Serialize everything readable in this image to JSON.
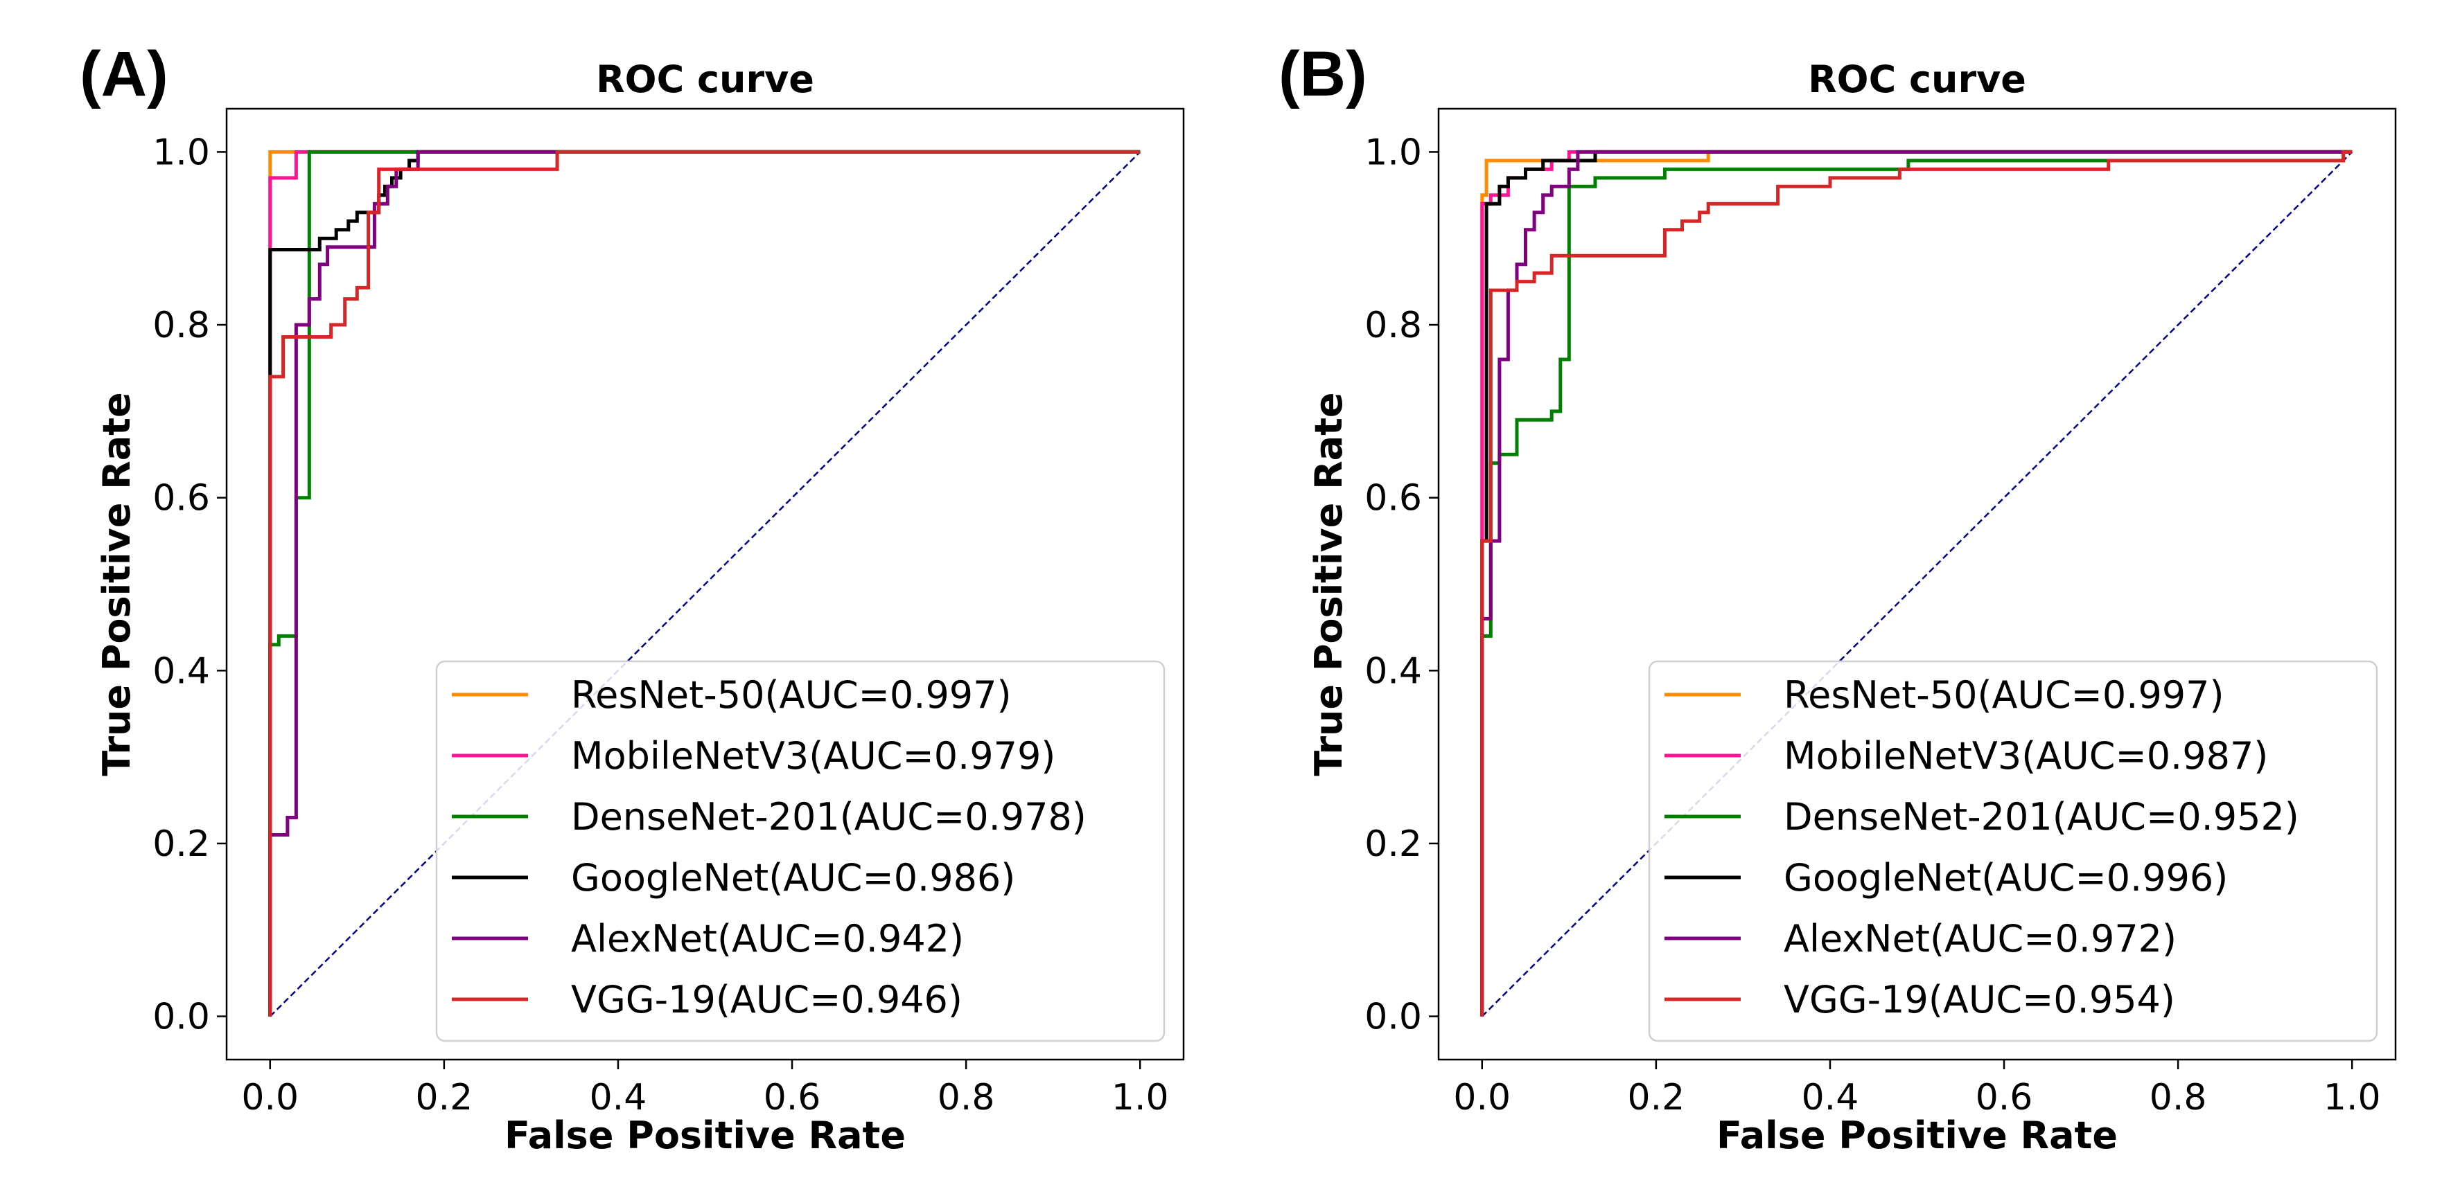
{
  "chart_data": [
    {
      "type": "line",
      "panel_label": "(A)",
      "title": "ROC curve",
      "xlabel": "False Positive Rate",
      "ylabel": "True Positive Rate",
      "xlim": [
        0,
        1
      ],
      "ylim": [
        0,
        1
      ],
      "xticks": [
        "0.0",
        "0.2",
        "0.4",
        "0.6",
        "0.8",
        "1.0"
      ],
      "yticks": [
        "0.0",
        "0.2",
        "0.4",
        "0.6",
        "0.8",
        "1.0"
      ],
      "legend_position": "lower-right",
      "diagonal": {
        "color": "#00008b",
        "style": "dashed",
        "points": [
          [
            0,
            0
          ],
          [
            1,
            1
          ]
        ]
      },
      "series": [
        {
          "name": "ResNet-50(AUC=0.997)",
          "color": "#ff8c00",
          "points": [
            [
              0,
              0
            ],
            [
              0,
              1
            ],
            [
              1,
              1
            ]
          ]
        },
        {
          "name": "MobileNetV3(AUC=0.979)",
          "color": "#ff1493",
          "points": [
            [
              0,
              0
            ],
            [
              0,
              0.97
            ],
            [
              0.03,
              0.97
            ],
            [
              0.03,
              1
            ],
            [
              1,
              1
            ]
          ]
        },
        {
          "name": "DenseNet-201(AUC=0.978)",
          "color": "#008000",
          "points": [
            [
              0,
              0
            ],
            [
              0,
              0.43
            ],
            [
              0.01,
              0.43
            ],
            [
              0.01,
              0.44
            ],
            [
              0.03,
              0.44
            ],
            [
              0.03,
              0.6
            ],
            [
              0.045,
              0.6
            ],
            [
              0.045,
              1
            ],
            [
              1,
              1
            ]
          ]
        },
        {
          "name": "GoogleNet(AUC=0.986)",
          "color": "#000000",
          "points": [
            [
              0,
              0
            ],
            [
              0,
              0.887
            ],
            [
              0.057,
              0.887
            ],
            [
              0.057,
              0.9
            ],
            [
              0.076,
              0.9
            ],
            [
              0.076,
              0.91
            ],
            [
              0.09,
              0.91
            ],
            [
              0.09,
              0.92
            ],
            [
              0.1,
              0.92
            ],
            [
              0.1,
              0.93
            ],
            [
              0.125,
              0.93
            ],
            [
              0.125,
              0.95
            ],
            [
              0.132,
              0.95
            ],
            [
              0.132,
              0.96
            ],
            [
              0.14,
              0.96
            ],
            [
              0.14,
              0.97
            ],
            [
              0.15,
              0.97
            ],
            [
              0.15,
              0.98
            ],
            [
              0.16,
              0.98
            ],
            [
              0.16,
              0.99
            ],
            [
              0.17,
              0.99
            ],
            [
              0.17,
              1
            ],
            [
              1,
              1
            ]
          ]
        },
        {
          "name": "AlexNet(AUC=0.942)",
          "color": "#800080",
          "points": [
            [
              0,
              0
            ],
            [
              0,
              0.21
            ],
            [
              0.02,
              0.21
            ],
            [
              0.02,
              0.23
            ],
            [
              0.03,
              0.23
            ],
            [
              0.03,
              0.8
            ],
            [
              0.045,
              0.8
            ],
            [
              0.045,
              0.83
            ],
            [
              0.057,
              0.83
            ],
            [
              0.057,
              0.87
            ],
            [
              0.066,
              0.87
            ],
            [
              0.066,
              0.89
            ],
            [
              0.12,
              0.89
            ],
            [
              0.12,
              0.94
            ],
            [
              0.135,
              0.94
            ],
            [
              0.135,
              0.96
            ],
            [
              0.145,
              0.96
            ],
            [
              0.145,
              0.98
            ],
            [
              0.17,
              0.98
            ],
            [
              0.17,
              1
            ],
            [
              1,
              1
            ]
          ]
        },
        {
          "name": "VGG-19(AUC=0.946)",
          "color": "#d62728",
          "points": [
            [
              0,
              0
            ],
            [
              0,
              0.74
            ],
            [
              0.015,
              0.74
            ],
            [
              0.015,
              0.786
            ],
            [
              0.07,
              0.786
            ],
            [
              0.07,
              0.8
            ],
            [
              0.086,
              0.8
            ],
            [
              0.086,
              0.83
            ],
            [
              0.1,
              0.83
            ],
            [
              0.1,
              0.843
            ],
            [
              0.113,
              0.843
            ],
            [
              0.113,
              0.93
            ],
            [
              0.125,
              0.93
            ],
            [
              0.125,
              0.98
            ],
            [
              0.33,
              0.98
            ],
            [
              0.33,
              1
            ],
            [
              1,
              1
            ]
          ]
        }
      ]
    },
    {
      "type": "line",
      "panel_label": "(B)",
      "title": "ROC curve",
      "xlabel": "False Positive Rate",
      "ylabel": "True Positive Rate",
      "xlim": [
        0,
        1
      ],
      "ylim": [
        0,
        1
      ],
      "xticks": [
        "0.0",
        "0.2",
        "0.4",
        "0.6",
        "0.8",
        "1.0"
      ],
      "yticks": [
        "0.0",
        "0.2",
        "0.4",
        "0.6",
        "0.8",
        "1.0"
      ],
      "legend_position": "lower-right",
      "diagonal": {
        "color": "#00008b",
        "style": "dashed",
        "points": [
          [
            0,
            0
          ],
          [
            1,
            1
          ]
        ]
      },
      "series": [
        {
          "name": "ResNet-50(AUC=0.997)",
          "color": "#ff8c00",
          "points": [
            [
              0,
              0
            ],
            [
              0,
              0.95
            ],
            [
              0.005,
              0.95
            ],
            [
              0.005,
              0.99
            ],
            [
              0.26,
              0.99
            ],
            [
              0.26,
              1
            ],
            [
              1,
              1
            ]
          ]
        },
        {
          "name": "MobileNetV3(AUC=0.987)",
          "color": "#ff1493",
          "points": [
            [
              0,
              0
            ],
            [
              0,
              0.94
            ],
            [
              0.01,
              0.94
            ],
            [
              0.01,
              0.95
            ],
            [
              0.03,
              0.95
            ],
            [
              0.03,
              0.97
            ],
            [
              0.05,
              0.97
            ],
            [
              0.05,
              0.98
            ],
            [
              0.08,
              0.98
            ],
            [
              0.08,
              0.99
            ],
            [
              0.1,
              0.99
            ],
            [
              0.1,
              1
            ],
            [
              1,
              1
            ]
          ]
        },
        {
          "name": "DenseNet-201(AUC=0.952)",
          "color": "#008000",
          "points": [
            [
              0,
              0
            ],
            [
              0,
              0.44
            ],
            [
              0.01,
              0.44
            ],
            [
              0.01,
              0.64
            ],
            [
              0.02,
              0.64
            ],
            [
              0.02,
              0.65
            ],
            [
              0.04,
              0.65
            ],
            [
              0.04,
              0.69
            ],
            [
              0.08,
              0.69
            ],
            [
              0.08,
              0.7
            ],
            [
              0.09,
              0.7
            ],
            [
              0.09,
              0.76
            ],
            [
              0.1,
              0.76
            ],
            [
              0.1,
              0.96
            ],
            [
              0.13,
              0.96
            ],
            [
              0.13,
              0.97
            ],
            [
              0.21,
              0.97
            ],
            [
              0.21,
              0.98
            ],
            [
              0.49,
              0.98
            ],
            [
              0.49,
              0.99
            ],
            [
              0.72,
              0.99
            ],
            [
              0.72,
              0.99
            ],
            [
              0.99,
              0.99
            ],
            [
              0.99,
              1
            ],
            [
              1,
              1
            ]
          ]
        },
        {
          "name": "GoogleNet(AUC=0.996)",
          "color": "#000000",
          "points": [
            [
              0,
              0
            ],
            [
              0,
              0.55
            ],
            [
              0.005,
              0.55
            ],
            [
              0.005,
              0.94
            ],
            [
              0.02,
              0.94
            ],
            [
              0.02,
              0.96
            ],
            [
              0.03,
              0.96
            ],
            [
              0.03,
              0.97
            ],
            [
              0.05,
              0.97
            ],
            [
              0.05,
              0.98
            ],
            [
              0.07,
              0.98
            ],
            [
              0.07,
              0.99
            ],
            [
              0.13,
              0.99
            ],
            [
              0.13,
              1
            ],
            [
              1,
              1
            ]
          ]
        },
        {
          "name": "AlexNet(AUC=0.972)",
          "color": "#800080",
          "points": [
            [
              0,
              0
            ],
            [
              0,
              0.46
            ],
            [
              0.01,
              0.46
            ],
            [
              0.01,
              0.55
            ],
            [
              0.02,
              0.55
            ],
            [
              0.02,
              0.76
            ],
            [
              0.03,
              0.76
            ],
            [
              0.03,
              0.84
            ],
            [
              0.04,
              0.84
            ],
            [
              0.04,
              0.87
            ],
            [
              0.05,
              0.87
            ],
            [
              0.05,
              0.91
            ],
            [
              0.06,
              0.91
            ],
            [
              0.06,
              0.93
            ],
            [
              0.07,
              0.93
            ],
            [
              0.07,
              0.95
            ],
            [
              0.08,
              0.95
            ],
            [
              0.08,
              0.96
            ],
            [
              0.1,
              0.96
            ],
            [
              0.1,
              0.98
            ],
            [
              0.11,
              0.98
            ],
            [
              0.11,
              1
            ],
            [
              1,
              1
            ]
          ]
        },
        {
          "name": "VGG-19(AUC=0.954)",
          "color": "#d62728",
          "points": [
            [
              0,
              0
            ],
            [
              0,
              0.55
            ],
            [
              0.01,
              0.55
            ],
            [
              0.01,
              0.84
            ],
            [
              0.04,
              0.84
            ],
            [
              0.04,
              0.85
            ],
            [
              0.06,
              0.85
            ],
            [
              0.06,
              0.86
            ],
            [
              0.08,
              0.86
            ],
            [
              0.08,
              0.88
            ],
            [
              0.21,
              0.88
            ],
            [
              0.21,
              0.91
            ],
            [
              0.23,
              0.91
            ],
            [
              0.23,
              0.92
            ],
            [
              0.25,
              0.92
            ],
            [
              0.25,
              0.93
            ],
            [
              0.26,
              0.93
            ],
            [
              0.26,
              0.94
            ],
            [
              0.34,
              0.94
            ],
            [
              0.34,
              0.96
            ],
            [
              0.4,
              0.96
            ],
            [
              0.4,
              0.97
            ],
            [
              0.48,
              0.97
            ],
            [
              0.48,
              0.98
            ],
            [
              0.72,
              0.98
            ],
            [
              0.72,
              0.99
            ],
            [
              0.99,
              0.99
            ],
            [
              0.99,
              1
            ],
            [
              1,
              1
            ]
          ]
        }
      ]
    }
  ]
}
